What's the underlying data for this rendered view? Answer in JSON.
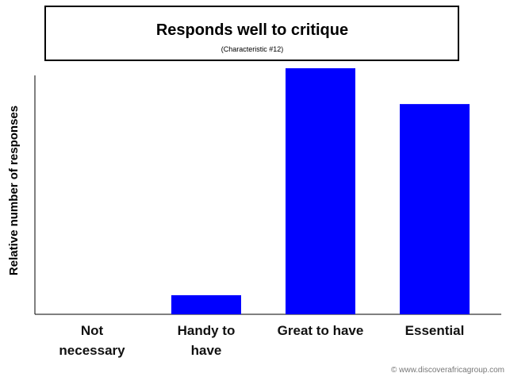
{
  "chart_data": {
    "type": "bar",
    "title": "Responds well to critique",
    "subtitle": "(Characteristic #12)",
    "y_label": "Relative number of responses",
    "categories": [
      "Not necessary",
      "Handy to have",
      "Great to have",
      "Essential"
    ],
    "values": [
      0,
      8,
      103,
      88
    ],
    "color": "#0000ff",
    "ylim": [
      0,
      100
    ],
    "footer": "© www.discoverafricagroup.com"
  }
}
